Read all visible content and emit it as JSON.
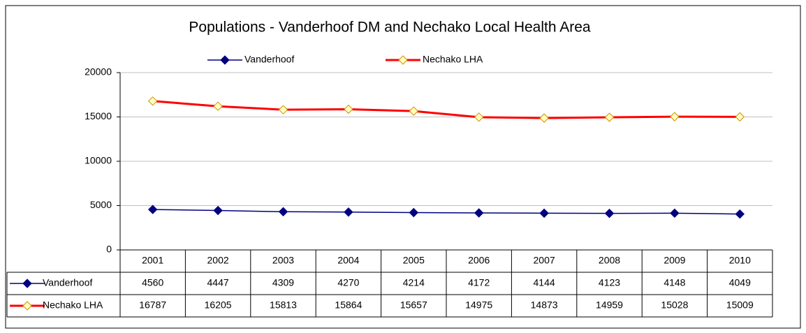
{
  "chart_data": {
    "type": "line",
    "title": "Populations - Vanderhoof DM and Nechako Local Health Area",
    "categories": [
      "2001",
      "2002",
      "2003",
      "2004",
      "2005",
      "2006",
      "2007",
      "2008",
      "2009",
      "2010"
    ],
    "series": [
      {
        "name": "Vanderhoof",
        "color": "#000080",
        "marker_fill": "#000080",
        "marker_stroke": "#000080",
        "line_width": 1.5,
        "values": [
          4560,
          4447,
          4309,
          4270,
          4214,
          4172,
          4144,
          4123,
          4148,
          4049
        ]
      },
      {
        "name": "Nechako LHA",
        "color": "#ff0000",
        "marker_fill": "#ffffc0",
        "marker_stroke": "#d09000",
        "line_width": 3,
        "values": [
          16787,
          16205,
          15813,
          15864,
          15657,
          14975,
          14873,
          14959,
          15028,
          15009
        ]
      }
    ],
    "ylim": [
      0,
      20000
    ],
    "yticks": [
      0,
      5000,
      10000,
      15000,
      20000
    ],
    "grid": true,
    "legend": "top",
    "data_table": true
  }
}
